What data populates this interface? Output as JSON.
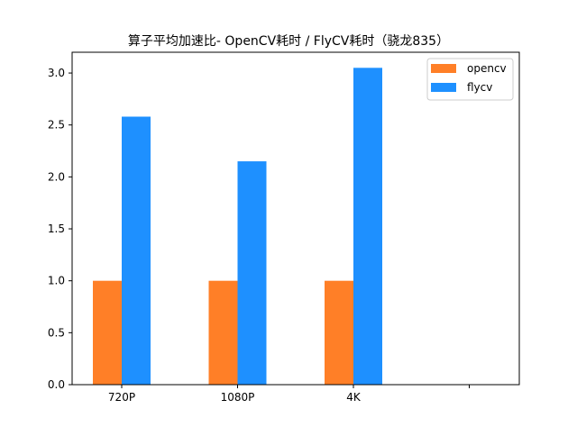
{
  "chart_data": {
    "type": "bar",
    "title": "算子平均加速比- OpenCV耗时 / FlyCV耗时（骁龙835）",
    "xlabel": "",
    "ylabel": "",
    "categories": [
      "720P",
      "1080P",
      "4K",
      ""
    ],
    "series": [
      {
        "name": "opencv",
        "color": "#ff7f27",
        "values": [
          1.0,
          1.0,
          1.0,
          null
        ]
      },
      {
        "name": "flycv",
        "color": "#1e90ff",
        "values": [
          2.58,
          2.15,
          3.05,
          null
        ]
      }
    ],
    "ylim": [
      0,
      3.2
    ],
    "yticks": [
      "0.0",
      "0.5",
      "1.0",
      "1.5",
      "2.0",
      "2.5",
      "3.0"
    ],
    "grid": false,
    "legend": "top-right"
  }
}
